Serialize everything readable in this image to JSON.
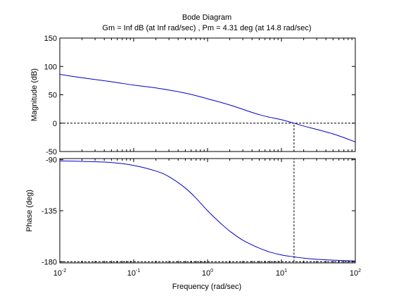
{
  "chart_data": {
    "type": "line",
    "title": "Bode Diagram",
    "subtitle": "Gm = Inf dB (at Inf rad/sec) ,  Pm = 4.31 deg (at 14.8 rad/sec)",
    "xlabel": "Frequency  (rad/sec)",
    "x_scale": "log",
    "xlim": [
      0.01,
      100
    ],
    "x_ticks": [
      0.01,
      0.1,
      1,
      10,
      100
    ],
    "x_tick_labels": [
      {
        "base": "10",
        "exp": "-2"
      },
      {
        "base": "10",
        "exp": "-1"
      },
      {
        "base": "10",
        "exp": "0"
      },
      {
        "base": "10",
        "exp": "1"
      },
      {
        "base": "10",
        "exp": "2"
      }
    ],
    "grid": false,
    "line_color": "#0000cc",
    "panels": [
      {
        "ylabel": "Magnitude (dB)",
        "ylim": [
          -50,
          150
        ],
        "y_ticks": [
          -50,
          0,
          50,
          100,
          150
        ],
        "y_tick_labels": [
          "-50",
          "0",
          "50",
          "100",
          "150"
        ],
        "series": [
          {
            "x": [
              0.01,
              0.02,
              0.05,
              0.1,
              0.2,
              0.5,
              1,
              2,
              5,
              10,
              14.8,
              20,
              50,
              100
            ],
            "values": [
              86,
              80,
              73,
              67,
              62,
              53,
              43,
              32,
              15,
              6,
              0,
              -5,
              -19,
              -33
            ]
          }
        ],
        "ref_lines": [
          {
            "axis": "y",
            "value": 0
          },
          {
            "axis": "x",
            "value": 14.8,
            "from": -50,
            "to": 0
          }
        ]
      },
      {
        "ylabel": "Phase (deg)",
        "ylim": [
          -181,
          -89
        ],
        "y_ticks": [
          -90,
          -135,
          -180
        ],
        "y_tick_labels": [
          "-90",
          "-135",
          "-180"
        ],
        "series": [
          {
            "x": [
              0.01,
              0.02,
              0.05,
              0.1,
              0.2,
              0.3,
              0.5,
              0.7,
              1,
              1.5,
              2,
              3,
              5,
              7,
              10,
              14.8,
              20,
              30,
              50,
              100
            ],
            "values": [
              -91,
              -91.5,
              -92.5,
              -95,
              -100,
              -105,
              -115,
              -124,
              -135,
              -146,
              -153,
              -161,
              -168,
              -171.5,
              -174,
              -175.7,
              -176.8,
              -177.8,
              -178.6,
              -179.3
            ]
          }
        ],
        "ref_lines": [
          {
            "axis": "y",
            "value": -180
          },
          {
            "axis": "x",
            "value": 14.8,
            "from": -180,
            "to": -89
          }
        ]
      }
    ]
  }
}
